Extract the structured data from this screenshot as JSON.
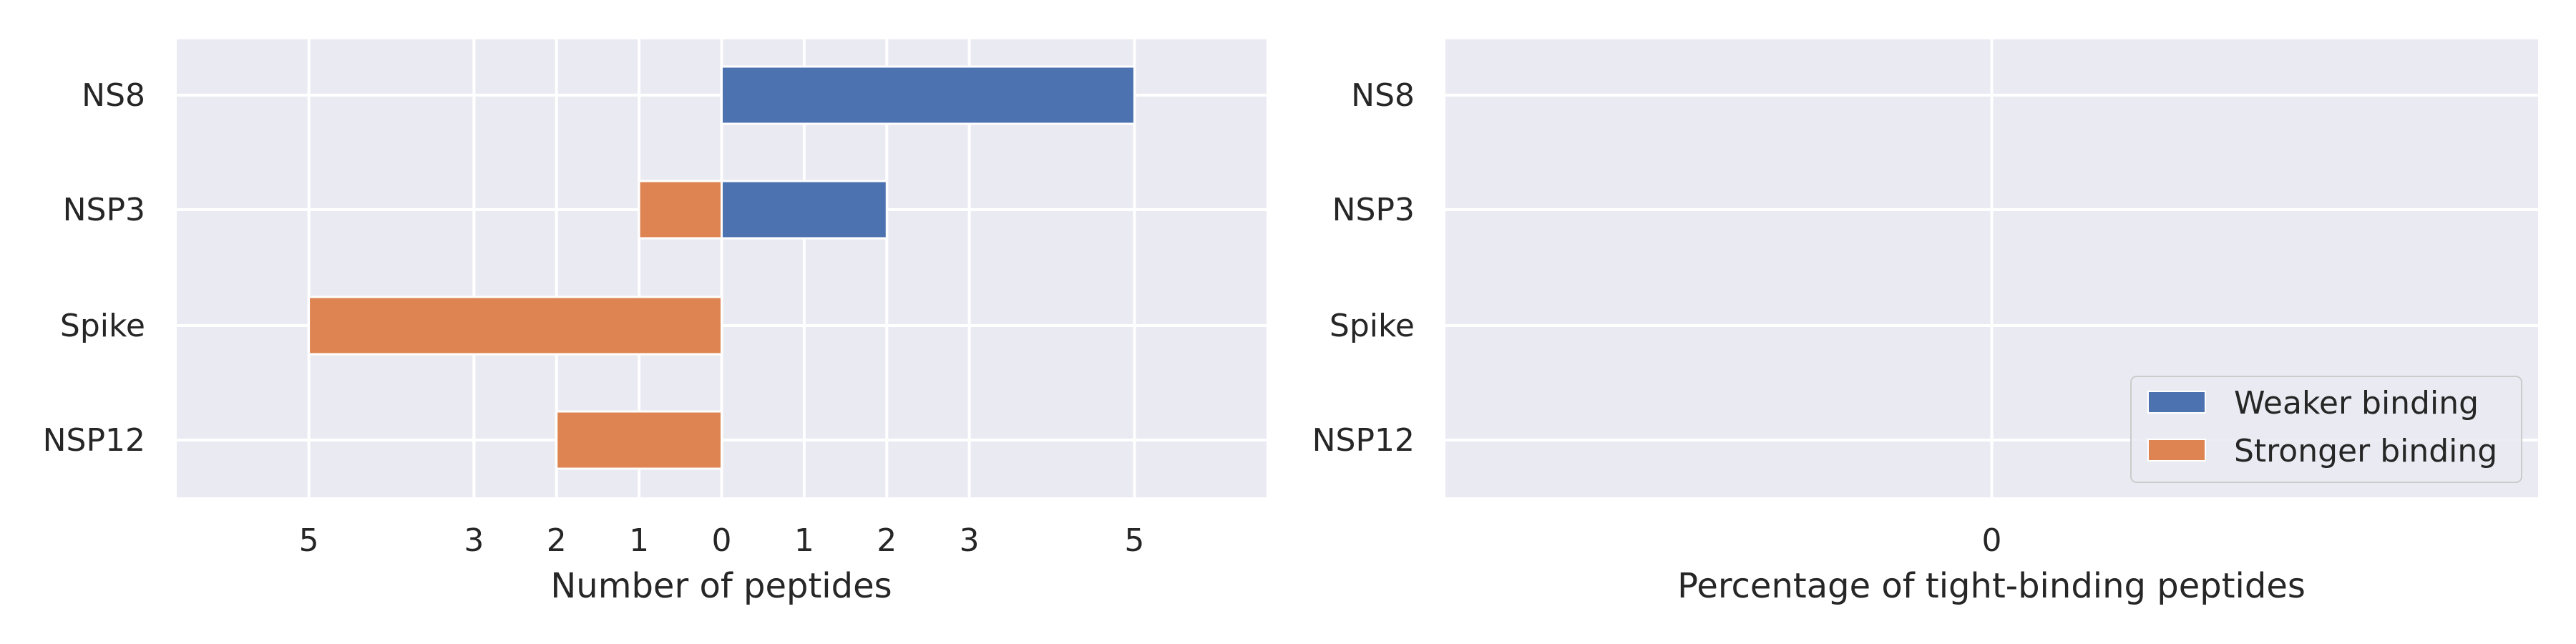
{
  "chart_data": [
    {
      "type": "bar",
      "orientation": "horizontal",
      "categories": [
        "NS8",
        "NSP3",
        "Spike",
        "NSP12"
      ],
      "series": [
        {
          "name": "Weaker binding",
          "direction": "right",
          "values": [
            5,
            2,
            0,
            0
          ]
        },
        {
          "name": "Stronger binding",
          "direction": "left",
          "values": [
            0,
            1,
            5,
            2
          ]
        }
      ],
      "xlabel": "Number of peptides",
      "ylabel": "",
      "xlim": [
        -6.6,
        6.6
      ],
      "xticks": [
        -5,
        -3,
        -2,
        -1,
        0,
        1,
        2,
        3,
        5
      ],
      "xtick_labels": [
        "5",
        "3",
        "2",
        "1",
        "0",
        "1",
        "2",
        "3",
        "5"
      ],
      "grid": true
    },
    {
      "type": "bar",
      "orientation": "horizontal",
      "categories": [
        "NS8",
        "NSP3",
        "Spike",
        "NSP12"
      ],
      "series": [],
      "xlabel": "Percentage of tight-binding peptides",
      "ylabel": "",
      "xticks": [
        0
      ],
      "xtick_labels": [
        "0"
      ],
      "grid": true,
      "legend": {
        "position": "lower-right",
        "entries": [
          {
            "label": "Weaker binding",
            "color": "#4c72b0"
          },
          {
            "label": "Stronger binding",
            "color": "#dd8452"
          }
        ]
      }
    }
  ],
  "colors": {
    "weaker": "#4c72b0",
    "stronger": "#dd8452",
    "plot_background": "#eaeaf2",
    "grid": "#ffffff",
    "text": "#262626"
  }
}
